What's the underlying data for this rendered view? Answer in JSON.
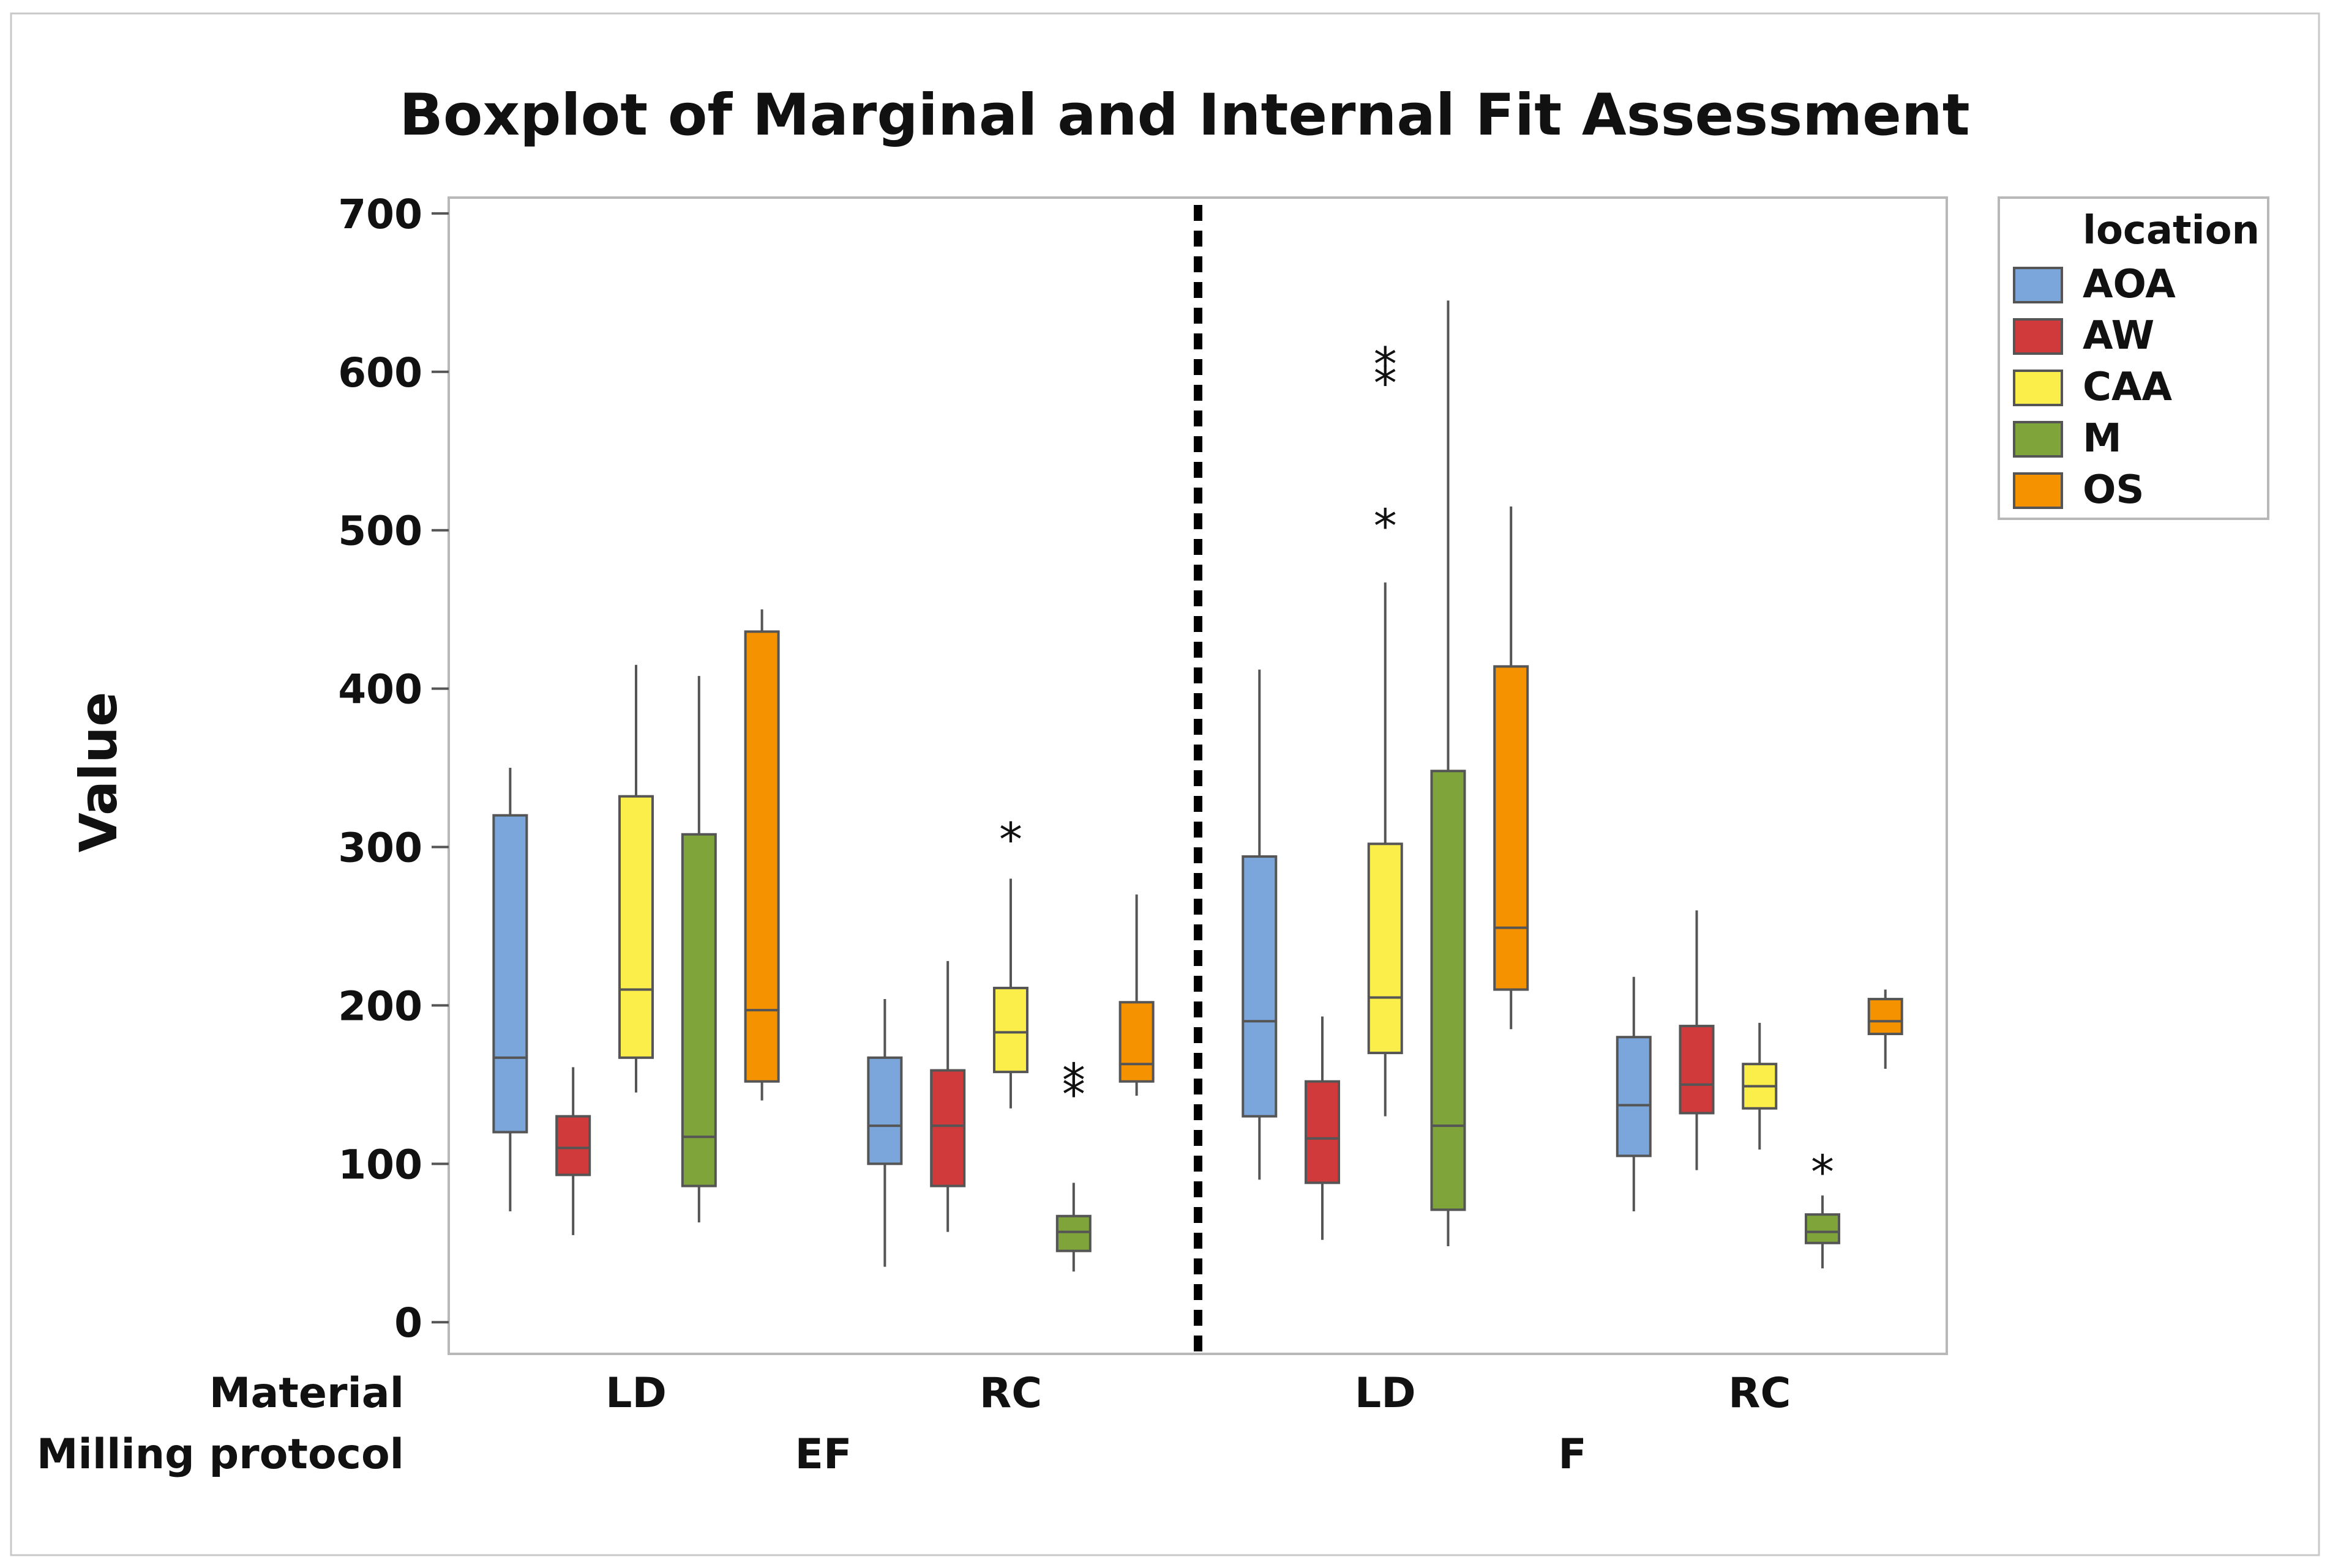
{
  "chart_data": {
    "type": "boxplot",
    "title": "Boxplot of Marginal and Internal Fit Assessment",
    "ylabel": "Value",
    "ylim": [
      -20,
      710
    ],
    "yticks": [
      0,
      100,
      200,
      300,
      400,
      500,
      600,
      700
    ],
    "legend": {
      "title": "location",
      "position": "right",
      "items": [
        {
          "name": "AOA",
          "color": "#7ba6dc"
        },
        {
          "name": "AW",
          "color": "#d03a3a"
        },
        {
          "name": "CAA",
          "color": "#fbee4a"
        },
        {
          "name": "M",
          "color": "#7ea43a"
        },
        {
          "name": "OS",
          "color": "#f59200"
        }
      ]
    },
    "x_row_labels": [
      "Material",
      "Milling protocol"
    ],
    "groups": [
      {
        "protocol": "EF",
        "materials": [
          {
            "material": "LD",
            "boxes": [
              {
                "location": "AOA",
                "whisker_low": 70,
                "q1": 120,
                "median": 167,
                "q3": 320,
                "whisker_high": 350,
                "outliers": []
              },
              {
                "location": "AW",
                "whisker_low": 55,
                "q1": 93,
                "median": 110,
                "q3": 130,
                "whisker_high": 161,
                "outliers": []
              },
              {
                "location": "CAA",
                "whisker_low": 145,
                "q1": 167,
                "median": 210,
                "q3": 332,
                "whisker_high": 415,
                "outliers": []
              },
              {
                "location": "M",
                "whisker_low": 63,
                "q1": 86,
                "median": 117,
                "q3": 308,
                "whisker_high": 408,
                "outliers": []
              },
              {
                "location": "OS",
                "whisker_low": 140,
                "q1": 152,
                "median": 197,
                "q3": 436,
                "whisker_high": 450,
                "outliers": []
              }
            ]
          },
          {
            "material": "RC",
            "boxes": [
              {
                "location": "AOA",
                "whisker_low": 35,
                "q1": 100,
                "median": 124,
                "q3": 167,
                "whisker_high": 204,
                "outliers": []
              },
              {
                "location": "AW",
                "whisker_low": 57,
                "q1": 86,
                "median": 124,
                "q3": 159,
                "whisker_high": 228,
                "outliers": []
              },
              {
                "location": "CAA",
                "whisker_low": 135,
                "q1": 158,
                "median": 183,
                "q3": 211,
                "whisker_high": 280,
                "outliers": [
                  307
                ]
              },
              {
                "location": "M",
                "whisker_low": 32,
                "q1": 45,
                "median": 57,
                "q3": 67,
                "whisker_high": 88,
                "outliers": [
                  146,
                  155
                ]
              },
              {
                "location": "OS",
                "whisker_low": 143,
                "q1": 152,
                "median": 163,
                "q3": 202,
                "whisker_high": 270,
                "outliers": []
              }
            ]
          }
        ]
      },
      {
        "protocol": "F",
        "materials": [
          {
            "material": "LD",
            "boxes": [
              {
                "location": "AOA",
                "whisker_low": 90,
                "q1": 130,
                "median": 190,
                "q3": 294,
                "whisker_high": 412,
                "outliers": []
              },
              {
                "location": "AW",
                "whisker_low": 52,
                "q1": 88,
                "median": 116,
                "q3": 152,
                "whisker_high": 193,
                "outliers": []
              },
              {
                "location": "CAA",
                "whisker_low": 130,
                "q1": 170,
                "median": 205,
                "q3": 302,
                "whisker_high": 467,
                "outliers": [
                  505,
                  595,
                  607
                ]
              },
              {
                "location": "M",
                "whisker_low": 48,
                "q1": 71,
                "median": 124,
                "q3": 348,
                "whisker_high": 645,
                "outliers": []
              },
              {
                "location": "OS",
                "whisker_low": 185,
                "q1": 210,
                "median": 249,
                "q3": 414,
                "whisker_high": 515,
                "outliers": []
              }
            ]
          },
          {
            "material": "RC",
            "boxes": [
              {
                "location": "AOA",
                "whisker_low": 70,
                "q1": 105,
                "median": 137,
                "q3": 180,
                "whisker_high": 218,
                "outliers": []
              },
              {
                "location": "AW",
                "whisker_low": 96,
                "q1": 132,
                "median": 150,
                "q3": 187,
                "whisker_high": 260,
                "outliers": []
              },
              {
                "location": "CAA",
                "whisker_low": 109,
                "q1": 135,
                "median": 149,
                "q3": 163,
                "whisker_high": 189,
                "outliers": []
              },
              {
                "location": "M",
                "whisker_low": 34,
                "q1": 50,
                "median": 57,
                "q3": 68,
                "whisker_high": 80,
                "outliers": [
                  97
                ]
              },
              {
                "location": "OS",
                "whisker_low": 160,
                "q1": 182,
                "median": 190,
                "q3": 204,
                "whisker_high": 210,
                "outliers": []
              }
            ]
          }
        ]
      }
    ]
  }
}
